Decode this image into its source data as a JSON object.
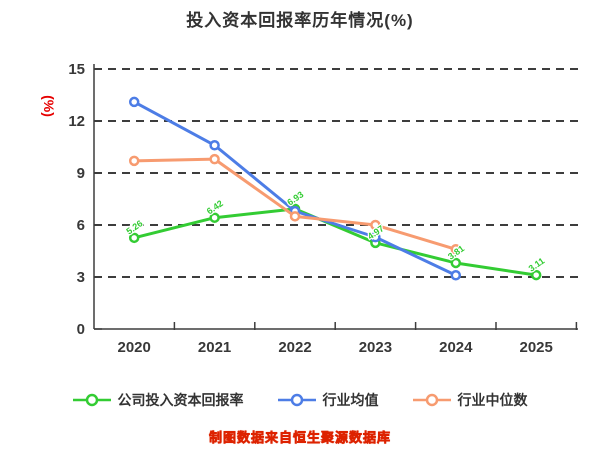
{
  "title": "投入资本回报率历年情况(%)",
  "y_axis_unit": "(%)",
  "caption": "制图数据来自恒生聚源数据库",
  "colors": {
    "title_text": "#333333",
    "axis_text": "#383838",
    "grid_line": "#3d3d3d",
    "y_unit_label": "#e60000",
    "caption_fill": "#eead00",
    "caption_outline": "#dd2200",
    "company_series": "#33cc33",
    "industry_mean_series": "#4d7de6",
    "industry_median_series": "#f79b70"
  },
  "chart_data": {
    "type": "line",
    "title": "投入资本回报率历年情况(%)",
    "xlabel": "",
    "ylabel": "(%)",
    "categories": [
      "2020",
      "2021",
      "2022",
      "2023",
      "2024",
      "2025"
    ],
    "yticks": [
      0,
      3,
      6,
      9,
      12,
      15
    ],
    "ylim": [
      0,
      15
    ],
    "grid": "horizontal-dashed",
    "legend_position": "bottom",
    "series": [
      {
        "name": "公司投入资本回报率",
        "id": "company-roic",
        "color": "#33cc33",
        "values": [
          5.26,
          6.42,
          6.93,
          4.97,
          3.81,
          3.11
        ],
        "point_labels": [
          "5.26",
          "6.42",
          "6.93",
          "4.97",
          "3.81",
          "3.11"
        ]
      },
      {
        "name": "行业均值",
        "id": "industry-mean",
        "color": "#4d7de6",
        "values": [
          13.1,
          10.6,
          6.8,
          5.3,
          3.1,
          null
        ]
      },
      {
        "name": "行业中位数",
        "id": "industry-median",
        "color": "#f79b70",
        "values": [
          9.7,
          9.8,
          6.5,
          6.0,
          4.6,
          null
        ]
      }
    ]
  }
}
